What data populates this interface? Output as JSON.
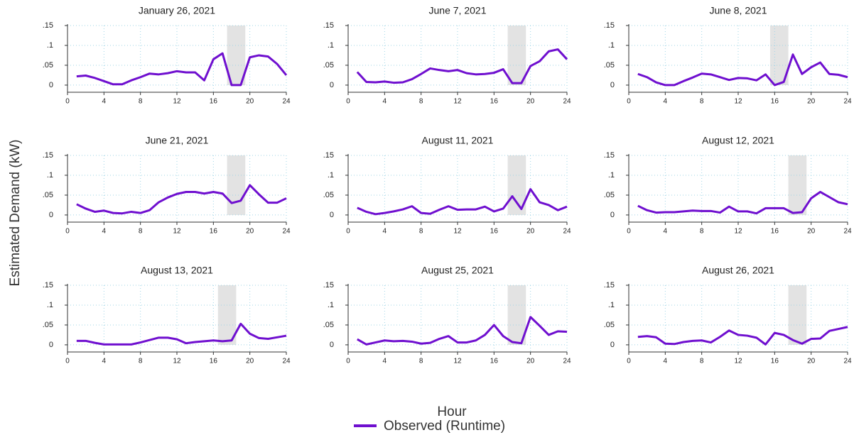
{
  "ylabel": "Estimated Demand (kW)",
  "xlabel": "Hour",
  "chart_data": [
    {
      "type": "line",
      "title": "January 26, 2021",
      "x": [
        1,
        2,
        3,
        4,
        5,
        6,
        7,
        8,
        9,
        10,
        11,
        12,
        13,
        14,
        15,
        16,
        17,
        18,
        19,
        20,
        21,
        22,
        23,
        24
      ],
      "series": [
        {
          "name": "Observed (Runtime)",
          "color": "#6f0fcf",
          "values": [
            0.022,
            0.024,
            0.018,
            0.01,
            0.002,
            0.002,
            0.012,
            0.02,
            0.029,
            0.027,
            0.03,
            0.035,
            0.032,
            0.032,
            0.012,
            0.065,
            0.08,
            0.0,
            0.0,
            0.07,
            0.075,
            0.072,
            0.053,
            0.025
          ]
        }
      ],
      "shade": [
        17.5,
        19.5
      ],
      "xlim": [
        0,
        24
      ],
      "ylim": [
        -0.018,
        0.15
      ],
      "xticks": [
        0,
        4,
        8,
        12,
        16,
        20,
        24
      ],
      "yticks": [
        0,
        {
          "value": 0.05,
          "label": ".05"
        },
        {
          "value": 0.1,
          "label": ".1"
        },
        {
          "value": 0.15,
          "label": ".15"
        }
      ],
      "grid": true
    },
    {
      "type": "line",
      "title": "June 7, 2021",
      "x": [
        1,
        2,
        3,
        4,
        5,
        6,
        7,
        8,
        9,
        10,
        11,
        12,
        13,
        14,
        15,
        16,
        17,
        18,
        19,
        20,
        21,
        22,
        23,
        24
      ],
      "series": [
        {
          "name": "Observed (Runtime)",
          "color": "#6f0fcf",
          "values": [
            0.033,
            0.008,
            0.007,
            0.009,
            0.006,
            0.007,
            0.015,
            0.028,
            0.042,
            0.038,
            0.035,
            0.038,
            0.03,
            0.027,
            0.028,
            0.031,
            0.04,
            0.005,
            0.005,
            0.048,
            0.06,
            0.085,
            0.09,
            0.065
          ]
        }
      ],
      "shade": [
        17.5,
        19.5
      ],
      "xlim": [
        0,
        24
      ],
      "ylim": [
        -0.018,
        0.15
      ],
      "xticks": [
        0,
        4,
        8,
        12,
        16,
        20,
        24
      ],
      "yticks": [
        0,
        {
          "value": 0.05,
          "label": ".05"
        },
        {
          "value": 0.1,
          "label": ".1"
        },
        {
          "value": 0.15,
          "label": ".15"
        }
      ],
      "grid": true
    },
    {
      "type": "line",
      "title": "June 8, 2021",
      "x": [
        1,
        2,
        3,
        4,
        5,
        6,
        7,
        8,
        9,
        10,
        11,
        12,
        13,
        14,
        15,
        16,
        17,
        18,
        19,
        20,
        21,
        22,
        23,
        24
      ],
      "series": [
        {
          "name": "Observed (Runtime)",
          "color": "#6f0fcf",
          "values": [
            0.028,
            0.02,
            0.007,
            0.0,
            0.0,
            0.01,
            0.019,
            0.029,
            0.027,
            0.02,
            0.013,
            0.018,
            0.017,
            0.012,
            0.027,
            0.0,
            0.008,
            0.077,
            0.028,
            0.045,
            0.057,
            0.028,
            0.026,
            0.02
          ]
        }
      ],
      "shade": [
        15.5,
        17.5
      ],
      "xlim": [
        0,
        24
      ],
      "ylim": [
        -0.018,
        0.15
      ],
      "xticks": [
        0,
        4,
        8,
        12,
        16,
        20,
        24
      ],
      "yticks": [
        0,
        {
          "value": 0.05,
          "label": ".05"
        },
        {
          "value": 0.1,
          "label": ".1"
        },
        {
          "value": 0.15,
          "label": ".15"
        }
      ],
      "grid": true
    },
    {
      "type": "line",
      "title": "June 21, 2021",
      "x": [
        1,
        2,
        3,
        4,
        5,
        6,
        7,
        8,
        9,
        10,
        11,
        12,
        13,
        14,
        15,
        16,
        17,
        18,
        19,
        20,
        21,
        22,
        23,
        24
      ],
      "series": [
        {
          "name": "Observed (Runtime)",
          "color": "#6f0fcf",
          "values": [
            0.027,
            0.016,
            0.008,
            0.011,
            0.005,
            0.004,
            0.008,
            0.005,
            0.012,
            0.032,
            0.044,
            0.053,
            0.058,
            0.058,
            0.054,
            0.058,
            0.054,
            0.03,
            0.036,
            0.075,
            0.052,
            0.031,
            0.031,
            0.042
          ]
        }
      ],
      "shade": [
        17.5,
        19.5
      ],
      "xlim": [
        0,
        24
      ],
      "ylim": [
        -0.018,
        0.15
      ],
      "xticks": [
        0,
        4,
        8,
        12,
        16,
        20,
        24
      ],
      "yticks": [
        0,
        {
          "value": 0.05,
          "label": ".05"
        },
        {
          "value": 0.1,
          "label": ".1"
        },
        {
          "value": 0.15,
          "label": ".15"
        }
      ],
      "grid": true
    },
    {
      "type": "line",
      "title": "August 11, 2021",
      "x": [
        1,
        2,
        3,
        4,
        5,
        6,
        7,
        8,
        9,
        10,
        11,
        12,
        13,
        14,
        15,
        16,
        17,
        18,
        19,
        20,
        21,
        22,
        23,
        24
      ],
      "series": [
        {
          "name": "Observed (Runtime)",
          "color": "#6f0fcf",
          "values": [
            0.018,
            0.008,
            0.002,
            0.005,
            0.009,
            0.014,
            0.022,
            0.005,
            0.003,
            0.013,
            0.022,
            0.013,
            0.014,
            0.014,
            0.021,
            0.009,
            0.016,
            0.047,
            0.015,
            0.065,
            0.032,
            0.025,
            0.012,
            0.021
          ]
        }
      ],
      "shade": [
        17.5,
        19.5
      ],
      "xlim": [
        0,
        24
      ],
      "ylim": [
        -0.018,
        0.15
      ],
      "xticks": [
        0,
        4,
        8,
        12,
        16,
        20,
        24
      ],
      "yticks": [
        0,
        {
          "value": 0.05,
          "label": ".05"
        },
        {
          "value": 0.1,
          "label": ".1"
        },
        {
          "value": 0.15,
          "label": ".15"
        }
      ],
      "grid": true
    },
    {
      "type": "line",
      "title": "August 12, 2021",
      "x": [
        1,
        2,
        3,
        4,
        5,
        6,
        7,
        8,
        9,
        10,
        11,
        12,
        13,
        14,
        15,
        16,
        17,
        18,
        19,
        20,
        21,
        22,
        23,
        24
      ],
      "series": [
        {
          "name": "Observed (Runtime)",
          "color": "#6f0fcf",
          "values": [
            0.023,
            0.012,
            0.006,
            0.007,
            0.007,
            0.009,
            0.011,
            0.01,
            0.01,
            0.006,
            0.021,
            0.009,
            0.009,
            0.004,
            0.017,
            0.017,
            0.017,
            0.005,
            0.007,
            0.042,
            0.058,
            0.045,
            0.032,
            0.027
          ]
        }
      ],
      "shade": [
        17.5,
        19.5
      ],
      "xlim": [
        0,
        24
      ],
      "ylim": [
        -0.018,
        0.15
      ],
      "xticks": [
        0,
        4,
        8,
        12,
        16,
        20,
        24
      ],
      "yticks": [
        0,
        {
          "value": 0.05,
          "label": ".05"
        },
        {
          "value": 0.1,
          "label": ".1"
        },
        {
          "value": 0.15,
          "label": ".15"
        }
      ],
      "grid": true
    },
    {
      "type": "line",
      "title": "August 13, 2021",
      "x": [
        1,
        2,
        3,
        4,
        5,
        6,
        7,
        8,
        9,
        10,
        11,
        12,
        13,
        14,
        15,
        16,
        17,
        18,
        19,
        20,
        21,
        22,
        23,
        24
      ],
      "series": [
        {
          "name": "Observed (Runtime)",
          "color": "#6f0fcf",
          "values": [
            0.01,
            0.01,
            0.005,
            0.001,
            0.001,
            0.001,
            0.001,
            0.006,
            0.012,
            0.018,
            0.018,
            0.014,
            0.004,
            0.007,
            0.009,
            0.011,
            0.009,
            0.011,
            0.053,
            0.028,
            0.017,
            0.015,
            0.019,
            0.023
          ]
        }
      ],
      "shade": [
        16.5,
        18.5
      ],
      "xlim": [
        0,
        24
      ],
      "ylim": [
        -0.018,
        0.15
      ],
      "xticks": [
        0,
        4,
        8,
        12,
        16,
        20,
        24
      ],
      "yticks": [
        0,
        {
          "value": 0.05,
          "label": ".05"
        },
        {
          "value": 0.1,
          "label": ".1"
        },
        {
          "value": 0.15,
          "label": ".15"
        }
      ],
      "grid": true
    },
    {
      "type": "line",
      "title": "August 25, 2021",
      "x": [
        1,
        2,
        3,
        4,
        5,
        6,
        7,
        8,
        9,
        10,
        11,
        12,
        13,
        14,
        15,
        16,
        17,
        18,
        19,
        20,
        21,
        22,
        23,
        24
      ],
      "series": [
        {
          "name": "Observed (Runtime)",
          "color": "#6f0fcf",
          "values": [
            0.014,
            0.001,
            0.006,
            0.011,
            0.009,
            0.01,
            0.008,
            0.003,
            0.005,
            0.015,
            0.022,
            0.006,
            0.006,
            0.011,
            0.025,
            0.05,
            0.022,
            0.007,
            0.004,
            0.07,
            0.048,
            0.025,
            0.034,
            0.033
          ]
        }
      ],
      "shade": [
        17.5,
        19.5
      ],
      "xlim": [
        0,
        24
      ],
      "ylim": [
        -0.018,
        0.15
      ],
      "xticks": [
        0,
        4,
        8,
        12,
        16,
        20,
        24
      ],
      "yticks": [
        0,
        {
          "value": 0.05,
          "label": ".05"
        },
        {
          "value": 0.1,
          "label": ".1"
        },
        {
          "value": 0.15,
          "label": ".15"
        }
      ],
      "grid": true
    },
    {
      "type": "line",
      "title": "August 26, 2021",
      "x": [
        1,
        2,
        3,
        4,
        5,
        6,
        7,
        8,
        9,
        10,
        11,
        12,
        13,
        14,
        15,
        16,
        17,
        18,
        19,
        20,
        21,
        22,
        23,
        24
      ],
      "series": [
        {
          "name": "Observed (Runtime)",
          "color": "#6f0fcf",
          "values": [
            0.02,
            0.022,
            0.019,
            0.003,
            0.002,
            0.007,
            0.01,
            0.011,
            0.006,
            0.02,
            0.036,
            0.025,
            0.023,
            0.018,
            0.001,
            0.03,
            0.025,
            0.012,
            0.003,
            0.015,
            0.016,
            0.035,
            0.04,
            0.045
          ]
        }
      ],
      "shade": [
        17.5,
        19.5
      ],
      "xlim": [
        0,
        24
      ],
      "ylim": [
        -0.018,
        0.15
      ],
      "xticks": [
        0,
        4,
        8,
        12,
        16,
        20,
        24
      ],
      "yticks": [
        0,
        {
          "value": 0.05,
          "label": ".05"
        },
        {
          "value": 0.1,
          "label": ".1"
        },
        {
          "value": 0.15,
          "label": ".15"
        }
      ],
      "grid": true
    }
  ]
}
